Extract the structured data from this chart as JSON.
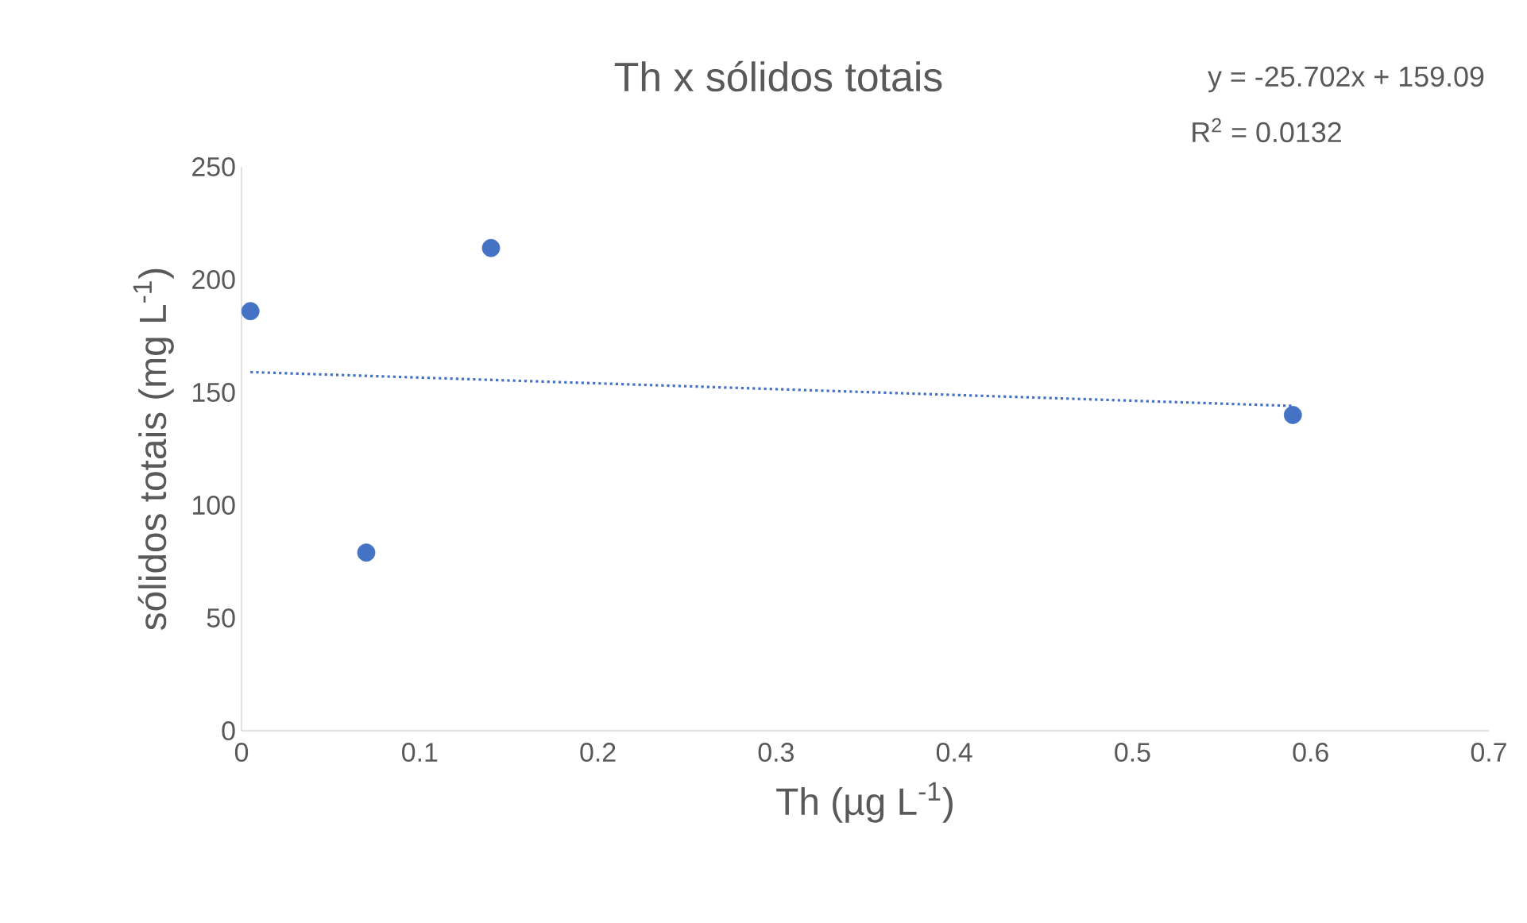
{
  "chart_data": {
    "type": "scatter",
    "title": "Th x sólidos totais",
    "xlabel": "Th (µg L$^{-1}$)",
    "ylabel": "sólidos totais (mg L$^{-1}$)",
    "annotations": [
      "y = -25.702x + 159.09",
      "R$^{2}$ = 0.0132"
    ],
    "series": [
      {
        "x": [
          0.005,
          0.07,
          0.14,
          0.59
        ],
        "values": [
          186,
          79,
          214,
          140
        ],
        "color": "#4472c4",
        "marker": "circle"
      },
      {
        "type": "line",
        "x": [
          0.005,
          0.59
        ],
        "values": [
          159,
          144
        ],
        "color": "#4472c4",
        "line_style": "dotted",
        "marker": "none"
      }
    ],
    "xlim": [
      0,
      0.7
    ],
    "ylim": [
      0,
      250
    ],
    "xticks": [
      0,
      0.1,
      0.2,
      0.3,
      0.4,
      0.5,
      0.6,
      0.7
    ],
    "yticks": [
      0,
      50,
      100,
      150,
      200,
      250
    ]
  }
}
